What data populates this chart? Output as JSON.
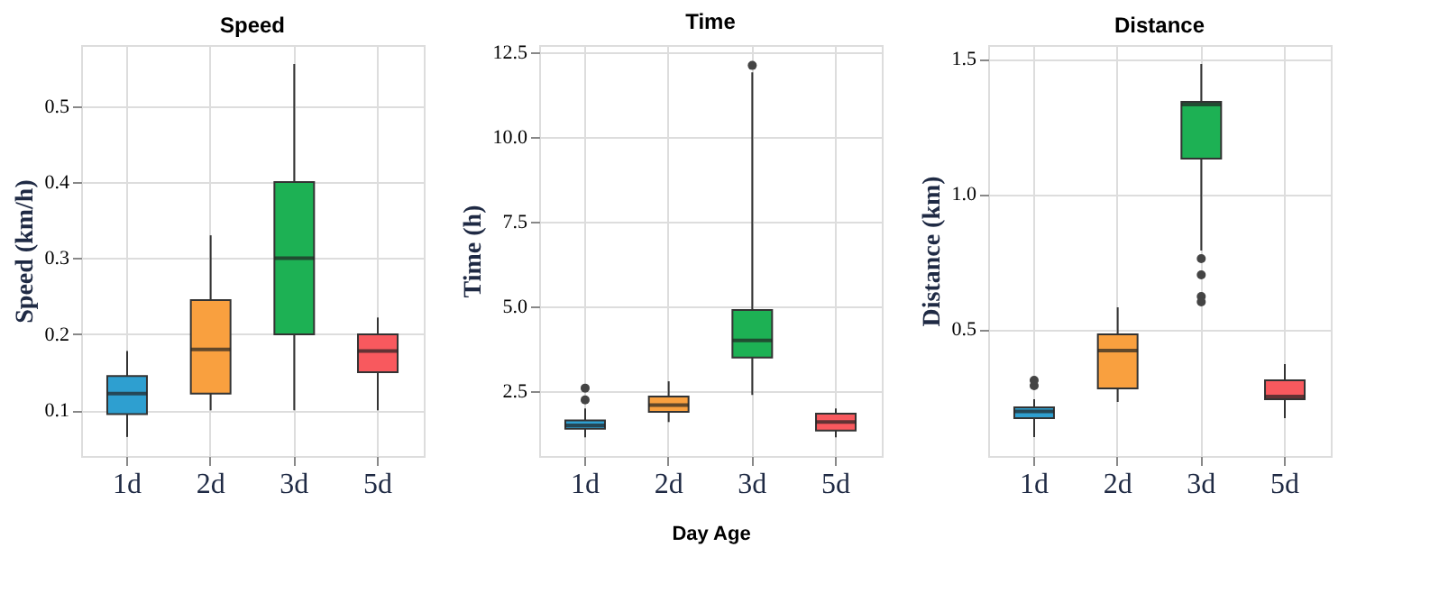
{
  "chart_data": [
    {
      "type": "box",
      "title": "Speed",
      "ylabel": "Speed (km/h)",
      "categories": [
        "1d",
        "2d",
        "3d",
        "5d"
      ],
      "colors": [
        "#2e9fd0",
        "#f9a03f",
        "#1db154",
        "#f8595e"
      ],
      "ylim": [
        0.04,
        0.58
      ],
      "yticks": [
        0.1,
        0.2,
        0.3,
        0.4,
        0.5
      ],
      "grid": true,
      "legend": false,
      "boxes": [
        {
          "low": 0.065,
          "q1": 0.095,
          "median": 0.122,
          "q3": 0.145,
          "high": 0.178
        },
        {
          "low": 0.1,
          "q1": 0.122,
          "median": 0.18,
          "q3": 0.245,
          "high": 0.33
        },
        {
          "low": 0.1,
          "q1": 0.2,
          "median": 0.3,
          "q3": 0.4,
          "high": 0.555
        },
        {
          "low": 0.1,
          "q1": 0.15,
          "median": 0.178,
          "q3": 0.2,
          "high": 0.222
        }
      ]
    },
    {
      "type": "box",
      "title": "Time",
      "ylabel": "Time (h)",
      "xlabel": "Day Age",
      "categories": [
        "1d",
        "2d",
        "3d",
        "5d"
      ],
      "colors": [
        "#2e9fd0",
        "#f9a03f",
        "#1db154",
        "#f8595e"
      ],
      "ylim": [
        0.6,
        12.7
      ],
      "yticks": [
        {
          "value": 2.5,
          "label": "2.5"
        },
        {
          "value": 5,
          "label": "5.0"
        },
        {
          "value": 7.5,
          "label": "7.5"
        },
        {
          "value": 10,
          "label": "10.0"
        },
        {
          "value": 12.5,
          "label": "12.5"
        }
      ],
      "grid": true,
      "legend": false,
      "boxes": [
        {
          "low": 1.15,
          "q1": 1.4,
          "median": 1.5,
          "q3": 1.65,
          "high": 2.0,
          "outliers": [
            2.25,
            2.6
          ]
        },
        {
          "low": 1.6,
          "q1": 1.9,
          "median": 2.1,
          "q3": 2.35,
          "high": 2.8
        },
        {
          "low": 2.4,
          "q1": 3.5,
          "median": 4.0,
          "q3": 4.9,
          "high": 11.9,
          "outliers": [
            12.1
          ]
        },
        {
          "low": 1.15,
          "q1": 1.35,
          "median": 1.6,
          "q3": 1.85,
          "high": 2.0
        }
      ]
    },
    {
      "type": "box",
      "title": "Distance",
      "ylabel": "Distance (km)",
      "categories": [
        "1d",
        "2d",
        "3d",
        "5d"
      ],
      "colors": [
        "#2e9fd0",
        "#f9a03f",
        "#1db154",
        "#f8595e"
      ],
      "ylim": [
        0.03,
        1.55
      ],
      "yticks": [
        0.5,
        {
          "value": 1,
          "label": "1.0"
        },
        1.5
      ],
      "grid": true,
      "legend": false,
      "boxes": [
        {
          "low": 0.1,
          "q1": 0.17,
          "median": 0.195,
          "q3": 0.21,
          "high": 0.24,
          "outliers": [
            0.29,
            0.31
          ]
        },
        {
          "low": 0.23,
          "q1": 0.28,
          "median": 0.42,
          "q3": 0.48,
          "high": 0.58
        },
        {
          "low": 0.79,
          "q1": 1.13,
          "median": 1.33,
          "q3": 1.34,
          "high": 1.48,
          "outliers": [
            0.76,
            0.7,
            0.62,
            0.6
          ]
        },
        {
          "low": 0.17,
          "q1": 0.24,
          "median": 0.25,
          "q3": 0.31,
          "high": 0.37
        }
      ]
    }
  ]
}
